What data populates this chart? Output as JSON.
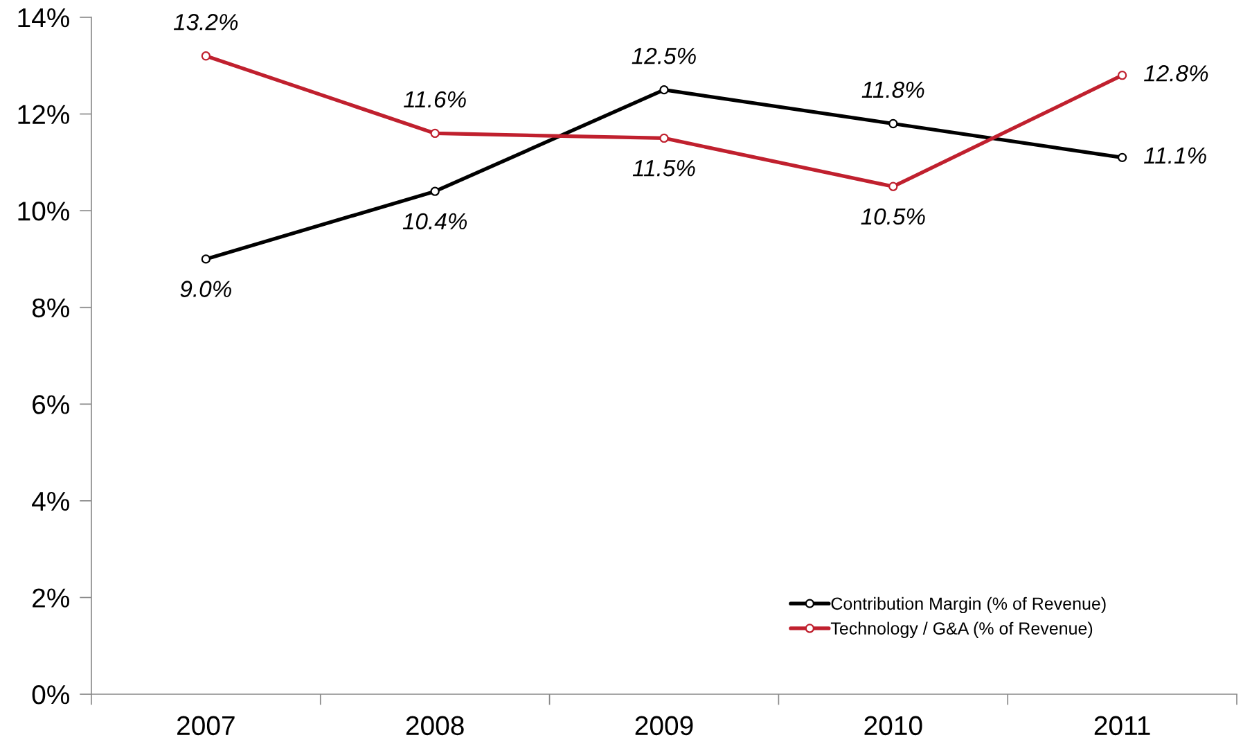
{
  "chart_data": {
    "type": "line",
    "categories": [
      "2007",
      "2008",
      "2009",
      "2010",
      "2011"
    ],
    "series": [
      {
        "name": "Contribution Margin (% of Revenue)",
        "color": "#000000",
        "values": [
          9.0,
          10.4,
          12.5,
          11.8,
          11.1
        ],
        "value_labels": [
          "9.0%",
          "10.4%",
          "12.5%",
          "11.8%",
          "11.1%"
        ]
      },
      {
        "name": "Technology / G&A (% of Revenue)",
        "color": "#c0202e",
        "values": [
          13.2,
          11.6,
          11.5,
          10.5,
          12.8
        ],
        "value_labels": [
          "13.2%",
          "11.6%",
          "11.5%",
          "10.5%",
          "12.8%"
        ]
      }
    ],
    "ylim": [
      0,
      14
    ],
    "yticks": [
      {
        "value": 0,
        "label": "0%"
      },
      {
        "value": 2,
        "label": "2%"
      },
      {
        "value": 4,
        "label": "4%"
      },
      {
        "value": 6,
        "label": "6%"
      },
      {
        "value": 8,
        "label": "8%"
      },
      {
        "value": 10,
        "label": "10%"
      },
      {
        "value": 12,
        "label": "12%"
      },
      {
        "value": 14,
        "label": "14%"
      }
    ],
    "grid": false,
    "legend": "bottom right",
    "marker": "circle",
    "line_style": "solid"
  }
}
